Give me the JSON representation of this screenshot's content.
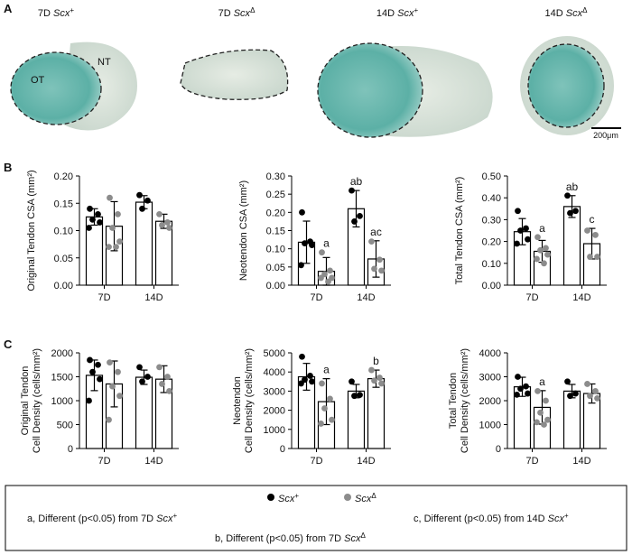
{
  "panel_labels": [
    "A",
    "B",
    "C"
  ],
  "panel_a": {
    "images": [
      {
        "time": "7D ",
        "gene": "Scx",
        "sup": "+"
      },
      {
        "time": "7D ",
        "gene": "Scx",
        "sup": "Δ"
      },
      {
        "time": "14D ",
        "gene": "Scx",
        "sup": "+"
      },
      {
        "time": "14D ",
        "gene": "Scx",
        "sup": "Δ"
      }
    ],
    "annotations": [
      "OT",
      "NT"
    ],
    "scale_bar": "200μm"
  },
  "chart_data": [
    {
      "type": "bar",
      "ylabel": [
        "Original Tendon CSA (mm²)"
      ],
      "categories": [
        "7D",
        "14D"
      ],
      "ylim": [
        0,
        0.2
      ],
      "yticks": [
        {
          "value": 0,
          "label": "0.00"
        },
        {
          "value": 0.05,
          "label": "0.05"
        },
        {
          "value": 0.1,
          "label": "0.10"
        },
        {
          "value": 0.15,
          "label": "0.15"
        },
        {
          "value": 0.2,
          "label": "0.20"
        }
      ],
      "series": [
        {
          "color": "#000000",
          "values": [
            0.125,
            0.152
          ],
          "errors": [
            0.015,
            0.012
          ],
          "points": [
            [
              0.14,
              0.13,
              0.12,
              0.115,
              0.105
            ],
            [
              0.165,
              0.155,
              0.14
            ]
          ],
          "annotations": [
            null,
            null
          ]
        },
        {
          "color": "#8c8c8c",
          "values": [
            0.108,
            0.117
          ],
          "errors": [
            0.045,
            0.013
          ],
          "points": [
            [
              0.16,
              0.13,
              0.105,
              0.08,
              0.07,
              0.07
            ],
            [
              0.13,
              0.115,
              0.11,
              0.105
            ]
          ],
          "annotations": [
            null,
            null
          ]
        }
      ]
    },
    {
      "type": "bar",
      "ylabel": [
        "Neotendon CSA (mm²)"
      ],
      "categories": [
        "7D",
        "14D"
      ],
      "ylim": [
        0,
        0.3
      ],
      "yticks": [
        {
          "value": 0,
          "label": "0.00"
        },
        {
          "value": 0.05,
          "label": "0.05"
        },
        {
          "value": 0.1,
          "label": "0.10"
        },
        {
          "value": 0.15,
          "label": "0.15"
        },
        {
          "value": 0.2,
          "label": "0.20"
        },
        {
          "value": 0.25,
          "label": "0.25"
        },
        {
          "value": 0.3,
          "label": "0.30"
        }
      ],
      "series": [
        {
          "color": "#000000",
          "values": [
            0.118,
            0.21
          ],
          "errors": [
            0.058,
            0.05
          ],
          "points": [
            [
              0.2,
              0.12,
              0.115,
              0.11,
              0.055
            ],
            [
              0.26,
              0.19,
              0.175
            ]
          ],
          "annotations": [
            null,
            "ab"
          ]
        },
        {
          "color": "#8c8c8c",
          "values": [
            0.038,
            0.072
          ],
          "errors": [
            0.038,
            0.05
          ],
          "points": [
            [
              0.09,
              0.04,
              0.03,
              0.02,
              0.02,
              0.01
            ],
            [
              0.12,
              0.07,
              0.045,
              0.04
            ]
          ],
          "annotations": [
            "a",
            "ac"
          ]
        }
      ]
    },
    {
      "type": "bar",
      "ylabel": [
        "Total Tendon CSA (mm²)"
      ],
      "categories": [
        "7D",
        "14D"
      ],
      "ylim": [
        0,
        0.5
      ],
      "yticks": [
        {
          "value": 0,
          "label": "0.00"
        },
        {
          "value": 0.1,
          "label": "0.10"
        },
        {
          "value": 0.2,
          "label": "0.20"
        },
        {
          "value": 0.3,
          "label": "0.30"
        },
        {
          "value": 0.4,
          "label": "0.40"
        },
        {
          "value": 0.5,
          "label": "0.50"
        }
      ],
      "series": [
        {
          "color": "#000000",
          "values": [
            0.245,
            0.36
          ],
          "errors": [
            0.06,
            0.05
          ],
          "points": [
            [
              0.34,
              0.26,
              0.25,
              0.21,
              0.19
            ],
            [
              0.41,
              0.34,
              0.33
            ]
          ],
          "annotations": [
            null,
            "ab"
          ]
        },
        {
          "color": "#8c8c8c",
          "values": [
            0.155,
            0.19
          ],
          "errors": [
            0.05,
            0.07
          ],
          "points": [
            [
              0.22,
              0.17,
              0.16,
              0.14,
              0.12,
              0.1
            ],
            [
              0.25,
              0.23,
              0.13,
              0.13
            ]
          ],
          "annotations": [
            "a",
            "c"
          ]
        }
      ]
    },
    {
      "type": "bar",
      "ylabel": [
        "Original Tendon",
        "Cell Density (cells/mm²)"
      ],
      "categories": [
        "7D",
        "14D"
      ],
      "ylim": [
        0,
        2000
      ],
      "yticks": [
        0,
        500,
        1000,
        1500,
        2000
      ],
      "series": [
        {
          "color": "#000000",
          "values": [
            1530,
            1490
          ],
          "errors": [
            320,
            150
          ],
          "points": [
            [
              1850,
              1750,
              1600,
              1450,
              1000
            ],
            [
              1700,
              1500,
              1400
            ]
          ],
          "annotations": [
            null,
            null
          ]
        },
        {
          "color": "#8c8c8c",
          "values": [
            1350,
            1450
          ],
          "errors": [
            480,
            280
          ],
          "points": [
            [
              1800,
              1600,
              1300,
              1100,
              600
            ],
            [
              1700,
              1500,
              1350,
              1200
            ]
          ],
          "annotations": [
            null,
            null
          ]
        }
      ]
    },
    {
      "type": "bar",
      "ylabel": [
        "Neotendon",
        "Cell Density (cells/mm²)"
      ],
      "categories": [
        "7D",
        "14D"
      ],
      "ylim": [
        0,
        5000
      ],
      "yticks": [
        0,
        1000,
        2000,
        3000,
        4000,
        5000
      ],
      "series": [
        {
          "color": "#000000",
          "values": [
            3750,
            3000
          ],
          "errors": [
            700,
            350
          ],
          "points": [
            [
              4800,
              3800,
              3600,
              3500,
              3400
            ],
            [
              3500,
              2800,
              2750
            ]
          ],
          "annotations": [
            null,
            null
          ]
        },
        {
          "color": "#8c8c8c",
          "values": [
            2450,
            3650
          ],
          "errors": [
            1200,
            450
          ],
          "points": [
            [
              3400,
              2600,
              2100,
              1500,
              1300
            ],
            [
              4100,
              3700,
              3550,
              3400
            ]
          ],
          "annotations": [
            "a",
            "b"
          ]
        }
      ]
    },
    {
      "type": "bar",
      "ylabel": [
        "Total Tendon",
        "Cell Density (cells/mm²)"
      ],
      "categories": [
        "7D",
        "14D"
      ],
      "ylim": [
        0,
        4000
      ],
      "yticks": [
        0,
        1000,
        2000,
        3000,
        4000
      ],
      "series": [
        {
          "color": "#000000",
          "values": [
            2580,
            2400
          ],
          "errors": [
            400,
            280
          ],
          "points": [
            [
              3000,
              2600,
              2500,
              2300,
              2250
            ],
            [
              2800,
              2300,
              2200
            ]
          ],
          "annotations": [
            null,
            null
          ]
        },
        {
          "color": "#8c8c8c",
          "values": [
            1720,
            2300
          ],
          "errors": [
            700,
            400
          ],
          "points": [
            [
              2400,
              2000,
              1500,
              1200,
              1100,
              1000
            ],
            [
              2700,
              2400,
              2200,
              2100
            ]
          ],
          "annotations": [
            "a",
            null
          ]
        }
      ]
    }
  ],
  "legend": {
    "entries": [
      {
        "gene": "Scx",
        "sup": "+",
        "color": "#000000"
      },
      {
        "gene": "Scx",
        "sup": "Δ",
        "color": "#8c8c8c"
      }
    ],
    "notes": [
      {
        "text": "a, Different (p<0.05) from 7D ",
        "gene": "Scx",
        "sup": "+"
      },
      {
        "text": "b, Different (p<0.05) from 7D ",
        "gene": "Scx",
        "sup": "Δ"
      },
      {
        "text": "c, Different (p<0.05) from 14D ",
        "gene": "Scx",
        "sup": "+"
      }
    ]
  }
}
